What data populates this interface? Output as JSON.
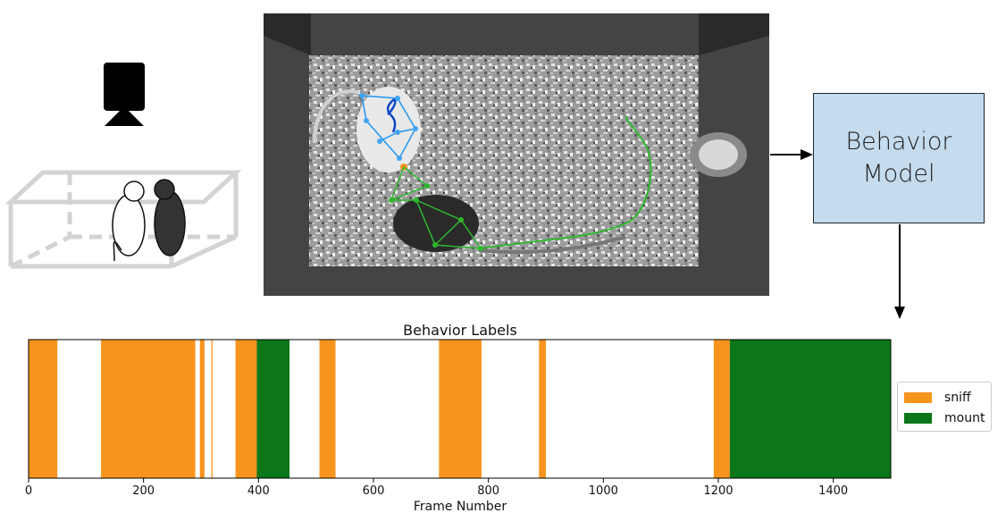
{
  "model": {
    "line1": "Behavior",
    "line2": "Model"
  },
  "chart_data": {
    "type": "table",
    "title": "Behavior Labels",
    "xlabel": "Frame Number",
    "ylabel": "",
    "xlim": [
      0,
      1500
    ],
    "xticks": [
      0,
      200,
      400,
      600,
      800,
      1000,
      1200,
      1400
    ],
    "legend_position": "right",
    "series": [
      {
        "name": "sniff",
        "color": "#f7941d",
        "intervals": [
          [
            0,
            50
          ],
          [
            126,
            290
          ],
          [
            298,
            306
          ],
          [
            318,
            320
          ],
          [
            360,
            397
          ],
          [
            506,
            534
          ],
          [
            714,
            788
          ],
          [
            888,
            900
          ],
          [
            1192,
            1220
          ]
        ]
      },
      {
        "name": "mount",
        "color": "#0b7718",
        "intervals": [
          [
            397,
            454
          ],
          [
            1220,
            1500
          ]
        ]
      }
    ]
  }
}
